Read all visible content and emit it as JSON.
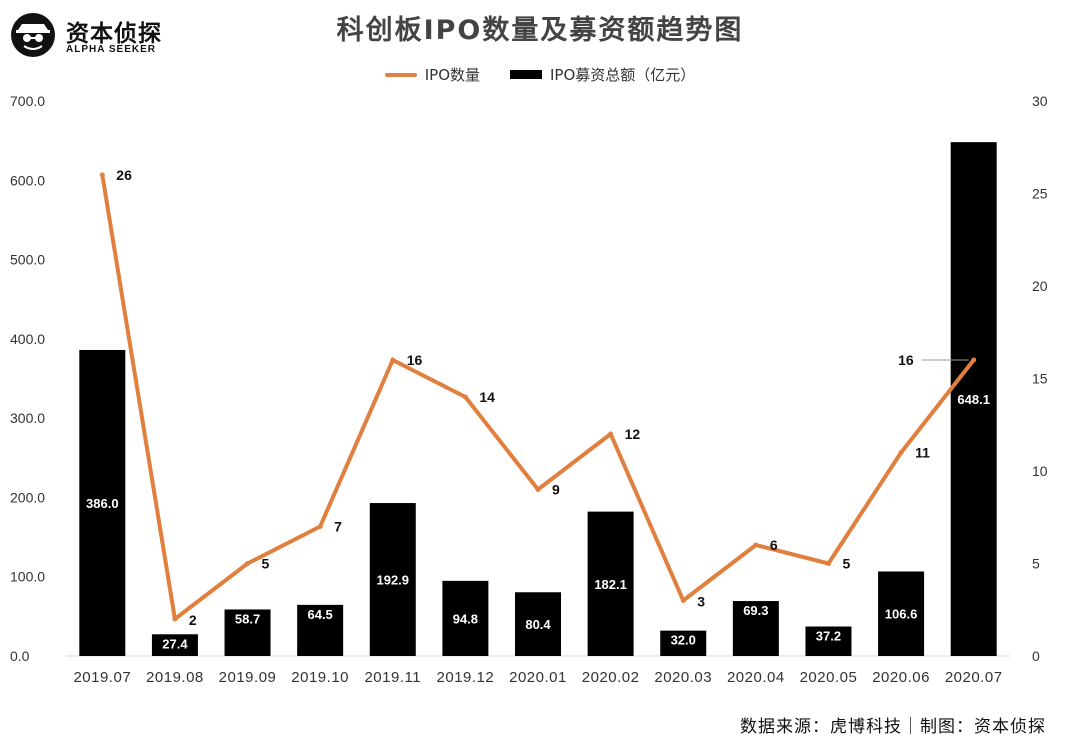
{
  "brand": {
    "name": "资本侦探",
    "tagline": "ALPHA SEEKER",
    "logo_icon": "detective-icon"
  },
  "footer": {
    "source": "数据来源：虎博科技｜制图：资本侦探"
  },
  "colors": {
    "line": "#E07F3E",
    "bar": "#000000",
    "axis": "#d9d9d9"
  },
  "chart_data": {
    "type": "bar",
    "title": "科创板IPO数量及募资额趋势图",
    "categories": [
      "2019.07",
      "2019.08",
      "2019.09",
      "2019.10",
      "2019.11",
      "2019.12",
      "2020.01",
      "2020.02",
      "2020.03",
      "2020.04",
      "2020.05",
      "2020.06",
      "2020.07"
    ],
    "series": [
      {
        "name": "IPO募资总额（亿元）",
        "type": "bar",
        "axis": "left",
        "values": [
          386.0,
          27.4,
          58.7,
          64.5,
          192.9,
          94.8,
          80.4,
          182.1,
          32.0,
          69.3,
          37.2,
          106.6,
          648.1
        ]
      },
      {
        "name": "IPO数量",
        "type": "line",
        "axis": "right",
        "values": [
          26,
          2,
          5,
          7,
          16,
          14,
          9,
          12,
          3,
          6,
          5,
          11,
          16
        ]
      }
    ],
    "legend_order": [
      "IPO数量",
      "IPO募资总额（亿元）"
    ],
    "left_axis": {
      "min": 0,
      "max": 700,
      "ticks": [
        "0.0",
        "100.0",
        "200.0",
        "300.0",
        "400.0",
        "500.0",
        "600.0",
        "700.0"
      ]
    },
    "right_axis": {
      "min": 0,
      "max": 30,
      "ticks": [
        "0",
        "5",
        "10",
        "15",
        "20",
        "25",
        "30"
      ]
    },
    "legend_position": "top-center",
    "grid": false
  }
}
